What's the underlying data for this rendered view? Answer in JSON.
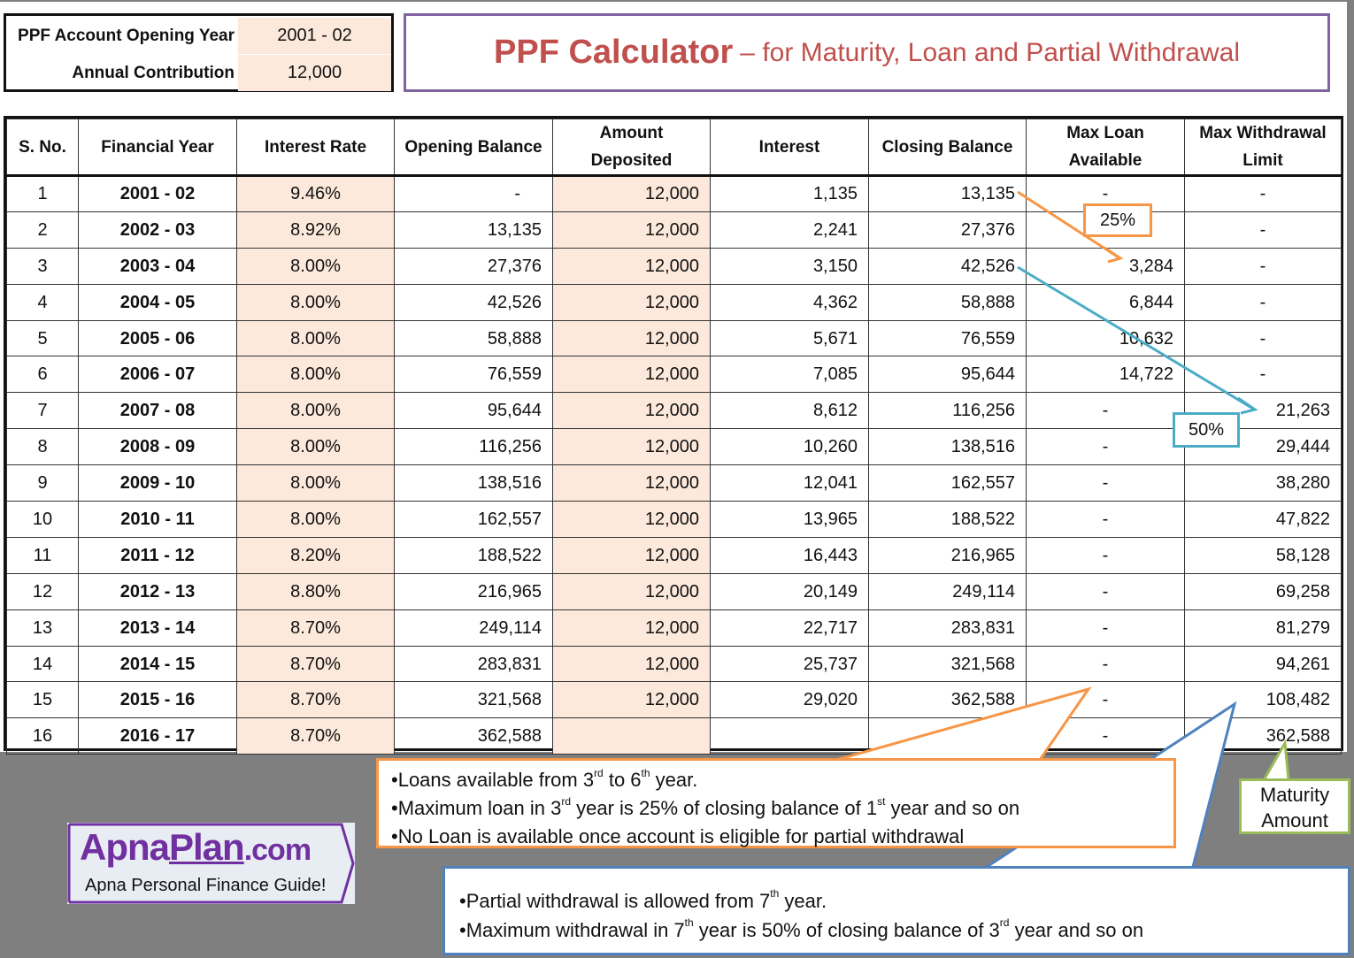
{
  "inputs": {
    "opening_year_label": "PPF Account Opening Year",
    "opening_year_value": "2001 - 02",
    "annual_contribution_label": "Annual Contribution",
    "annual_contribution_value": "12,000"
  },
  "title": {
    "main": "PPF Calculator",
    "sub": "– for Maturity, Loan and Partial Withdrawal",
    "color": "#c0504d",
    "border_color": "#8064a2"
  },
  "table": {
    "headers": [
      "S. No.",
      "Financial Year",
      "Interest Rate",
      "Opening Balance",
      "Amount Deposited",
      "Interest",
      "Closing Balance",
      "Max Loan Available",
      "Max Withdrawal Limit"
    ],
    "rows": [
      {
        "sno": "1",
        "year": "2001 - 02",
        "rate": "9.46%",
        "opening": "-",
        "deposit": "12,000",
        "interest": "1,135",
        "closing": "13,135",
        "loan": "-",
        "withdrawal": "-"
      },
      {
        "sno": "2",
        "year": "2002 - 03",
        "rate": "8.92%",
        "opening": "13,135",
        "deposit": "12,000",
        "interest": "2,241",
        "closing": "27,376",
        "loan": "-",
        "withdrawal": "-"
      },
      {
        "sno": "3",
        "year": "2003 - 04",
        "rate": "8.00%",
        "opening": "27,376",
        "deposit": "12,000",
        "interest": "3,150",
        "closing": "42,526",
        "loan": "3,284",
        "withdrawal": "-"
      },
      {
        "sno": "4",
        "year": "2004 - 05",
        "rate": "8.00%",
        "opening": "42,526",
        "deposit": "12,000",
        "interest": "4,362",
        "closing": "58,888",
        "loan": "6,844",
        "withdrawal": "-"
      },
      {
        "sno": "5",
        "year": "2005 - 06",
        "rate": "8.00%",
        "opening": "58,888",
        "deposit": "12,000",
        "interest": "5,671",
        "closing": "76,559",
        "loan": "10,632",
        "withdrawal": "-"
      },
      {
        "sno": "6",
        "year": "2006 - 07",
        "rate": "8.00%",
        "opening": "76,559",
        "deposit": "12,000",
        "interest": "7,085",
        "closing": "95,644",
        "loan": "14,722",
        "withdrawal": "-"
      },
      {
        "sno": "7",
        "year": "2007 - 08",
        "rate": "8.00%",
        "opening": "95,644",
        "deposit": "12,000",
        "interest": "8,612",
        "closing": "116,256",
        "loan": "-",
        "withdrawal": "21,263"
      },
      {
        "sno": "8",
        "year": "2008 - 09",
        "rate": "8.00%",
        "opening": "116,256",
        "deposit": "12,000",
        "interest": "10,260",
        "closing": "138,516",
        "loan": "-",
        "withdrawal": "29,444"
      },
      {
        "sno": "9",
        "year": "2009 - 10",
        "rate": "8.00%",
        "opening": "138,516",
        "deposit": "12,000",
        "interest": "12,041",
        "closing": "162,557",
        "loan": "-",
        "withdrawal": "38,280"
      },
      {
        "sno": "10",
        "year": "2010 - 11",
        "rate": "8.00%",
        "opening": "162,557",
        "deposit": "12,000",
        "interest": "13,965",
        "closing": "188,522",
        "loan": "-",
        "withdrawal": "47,822"
      },
      {
        "sno": "11",
        "year": "2011 - 12",
        "rate": "8.20%",
        "opening": "188,522",
        "deposit": "12,000",
        "interest": "16,443",
        "closing": "216,965",
        "loan": "-",
        "withdrawal": "58,128"
      },
      {
        "sno": "12",
        "year": "2012 - 13",
        "rate": "8.80%",
        "opening": "216,965",
        "deposit": "12,000",
        "interest": "20,149",
        "closing": "249,114",
        "loan": "-",
        "withdrawal": "69,258"
      },
      {
        "sno": "13",
        "year": "2013 - 14",
        "rate": "8.70%",
        "opening": "249,114",
        "deposit": "12,000",
        "interest": "22,717",
        "closing": "283,831",
        "loan": "-",
        "withdrawal": "81,279"
      },
      {
        "sno": "14",
        "year": "2014 - 15",
        "rate": "8.70%",
        "opening": "283,831",
        "deposit": "12,000",
        "interest": "25,737",
        "closing": "321,568",
        "loan": "-",
        "withdrawal": "94,261"
      },
      {
        "sno": "15",
        "year": "2015 - 16",
        "rate": "8.70%",
        "opening": "321,568",
        "deposit": "12,000",
        "interest": "29,020",
        "closing": "362,588",
        "loan": "-",
        "withdrawal": "108,482"
      },
      {
        "sno": "16",
        "year": "2016 - 17",
        "rate": "8.70%",
        "opening": "362,588",
        "deposit": "",
        "interest": "",
        "closing": "",
        "loan": "-",
        "withdrawal": "362,588"
      }
    ]
  },
  "callouts": {
    "loan_pct": "25%",
    "withdrawal_pct": "50%",
    "maturity_line1": "Maturity",
    "maturity_line2": "Amount",
    "loan_notes": [
      {
        "pre": "•Loans available from 3",
        "sup1": "rd",
        "mid": " to 6",
        "sup2": "th",
        "post": " year."
      },
      {
        "pre": "•Maximum loan in 3",
        "sup1": "rd",
        "mid": " year is 25% of closing balance of 1",
        "sup2": "st",
        "post": " year and so on"
      },
      {
        "pre": "•No Loan is available once account is eligible for partial withdrawal",
        "sup1": "",
        "mid": "",
        "sup2": "",
        "post": ""
      }
    ],
    "withdrawal_notes": [
      {
        "pre": "•Partial withdrawal is allowed from 7",
        "sup1": "th",
        "mid": " year.",
        "sup2": "",
        "post": ""
      },
      {
        "pre": "•Maximum withdrawal in 7",
        "sup1": "th",
        "mid": " year is 50% of closing balance of 3",
        "sup2": "rd",
        "post": " year and so on"
      }
    ]
  },
  "logo": {
    "brand_a": "Apna",
    "brand_b": "Plan",
    "brand_c": ".com",
    "tagline": "Apna Personal Finance Guide!"
  },
  "colors": {
    "peach": "#fce9db",
    "orange": "#f79646",
    "teal": "#4bacc6",
    "blue": "#4f81bd",
    "green": "#9bbb59",
    "purple": "#7030a0",
    "background_gray": "#7f7f7f"
  }
}
